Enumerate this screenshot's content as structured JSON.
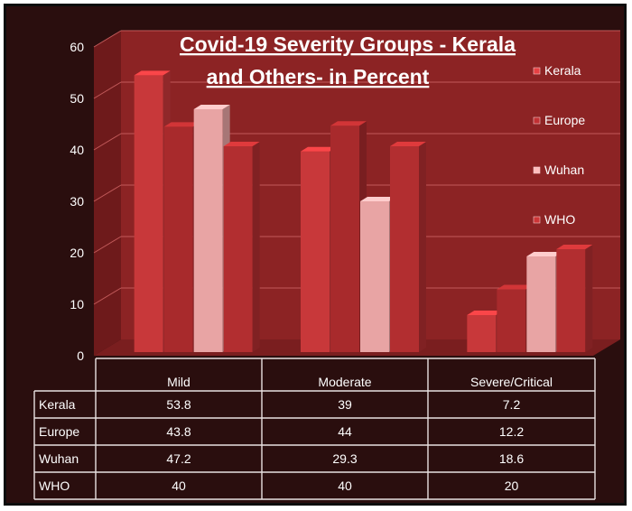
{
  "chart_data": {
    "type": "bar",
    "title": "Covid-19 Severity Groups - Kerala and Others- in Percent",
    "title_lines": [
      "Covid-19 Severity Groups - Kerala",
      "and Others- in Percent"
    ],
    "categories": [
      "Mild",
      "Moderate",
      "Severe/Critical"
    ],
    "series": [
      {
        "name": "Kerala",
        "values": [
          53.8,
          39,
          7.2
        ],
        "color": "#c8383a"
      },
      {
        "name": "Europe",
        "values": [
          43.8,
          44,
          12.2
        ],
        "color": "#a82a2c"
      },
      {
        "name": "Wuhan",
        "values": [
          47.2,
          29.3,
          18.6
        ],
        "color": "#e8a4a4"
      },
      {
        "name": "WHO",
        "values": [
          40,
          40,
          20
        ],
        "color": "#b22e30"
      }
    ],
    "table": {
      "rows": [
        {
          "label": "Kerala",
          "values": [
            "53.8",
            "39",
            "7.2"
          ]
        },
        {
          "label": "Europe",
          "values": [
            "43.8",
            "44",
            "12.2"
          ]
        },
        {
          "label": "Wuhan",
          "values": [
            "47.2",
            "29.3",
            "18.6"
          ]
        },
        {
          "label": "WHO",
          "values": [
            "40",
            "40",
            "20"
          ]
        }
      ]
    },
    "y_ticks": [
      "0",
      "10",
      "20",
      "30",
      "40",
      "50",
      "60"
    ],
    "ylim": [
      0,
      60
    ],
    "grid": true,
    "legend_position": "right",
    "style": "3d-clustered-column-with-data-table",
    "colors": {
      "background": "#2a0e0e",
      "wall": "#8c2324",
      "wall_dark": "#6e1a1b",
      "floor": "#7a1e1f",
      "gridline": "#c25a5a",
      "table_bg": "#2a0e0e",
      "text": "#ffffff"
    }
  }
}
